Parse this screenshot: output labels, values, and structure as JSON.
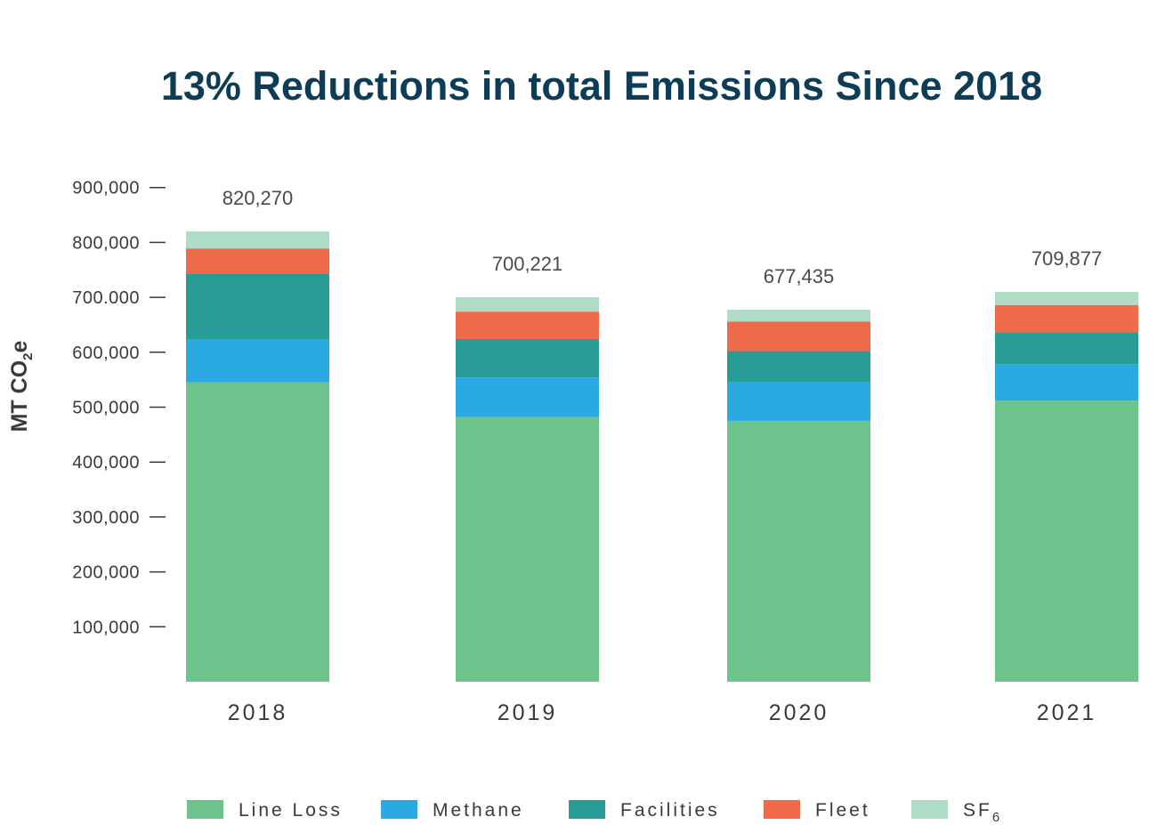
{
  "chart_data": {
    "type": "bar",
    "stacked": true,
    "title": "13% Reductions in total Emissions Since 2018",
    "ylabel": "MT CO",
    "ylabel_sub": "2",
    "ylabel_tail": "e",
    "xlabel": "",
    "ylim": [
      0,
      900000
    ],
    "yticks": [
      {
        "value": 100000,
        "label": "100,000"
      },
      {
        "value": 200000,
        "label": "200,000"
      },
      {
        "value": 300000,
        "label": "300,000"
      },
      {
        "value": 400000,
        "label": "400,000"
      },
      {
        "value": 500000,
        "label": "500,000"
      },
      {
        "value": 600000,
        "label": "600,000"
      },
      {
        "value": 700000,
        "label": "700.000"
      },
      {
        "value": 800000,
        "label": "800,000"
      },
      {
        "value": 900000,
        "label": "900,000"
      }
    ],
    "categories": [
      "2018",
      "2019",
      "2020",
      "2021"
    ],
    "totals": [
      "820,270",
      "700,221",
      "677,435",
      "709,877"
    ],
    "series": [
      {
        "name": "Line Loss",
        "color": "#6cc48c",
        "values": [
          545000,
          482000,
          475000,
          512000
        ]
      },
      {
        "name": "Methane",
        "color": "#2aa9e3",
        "values": [
          78000,
          72000,
          70000,
          66000
        ]
      },
      {
        "name": "Facilities",
        "color": "#289c96",
        "values": [
          120000,
          70000,
          57000,
          58000
        ]
      },
      {
        "name": "Fleet",
        "color": "#ef6a4a",
        "values": [
          46000,
          50000,
          54000,
          50000
        ]
      },
      {
        "name": "SF",
        "name_sub": "6",
        "color": "#aedcc6",
        "values": [
          31270,
          26221,
          21435,
          23877
        ]
      }
    ],
    "legend": "bottom",
    "grid": false
  }
}
